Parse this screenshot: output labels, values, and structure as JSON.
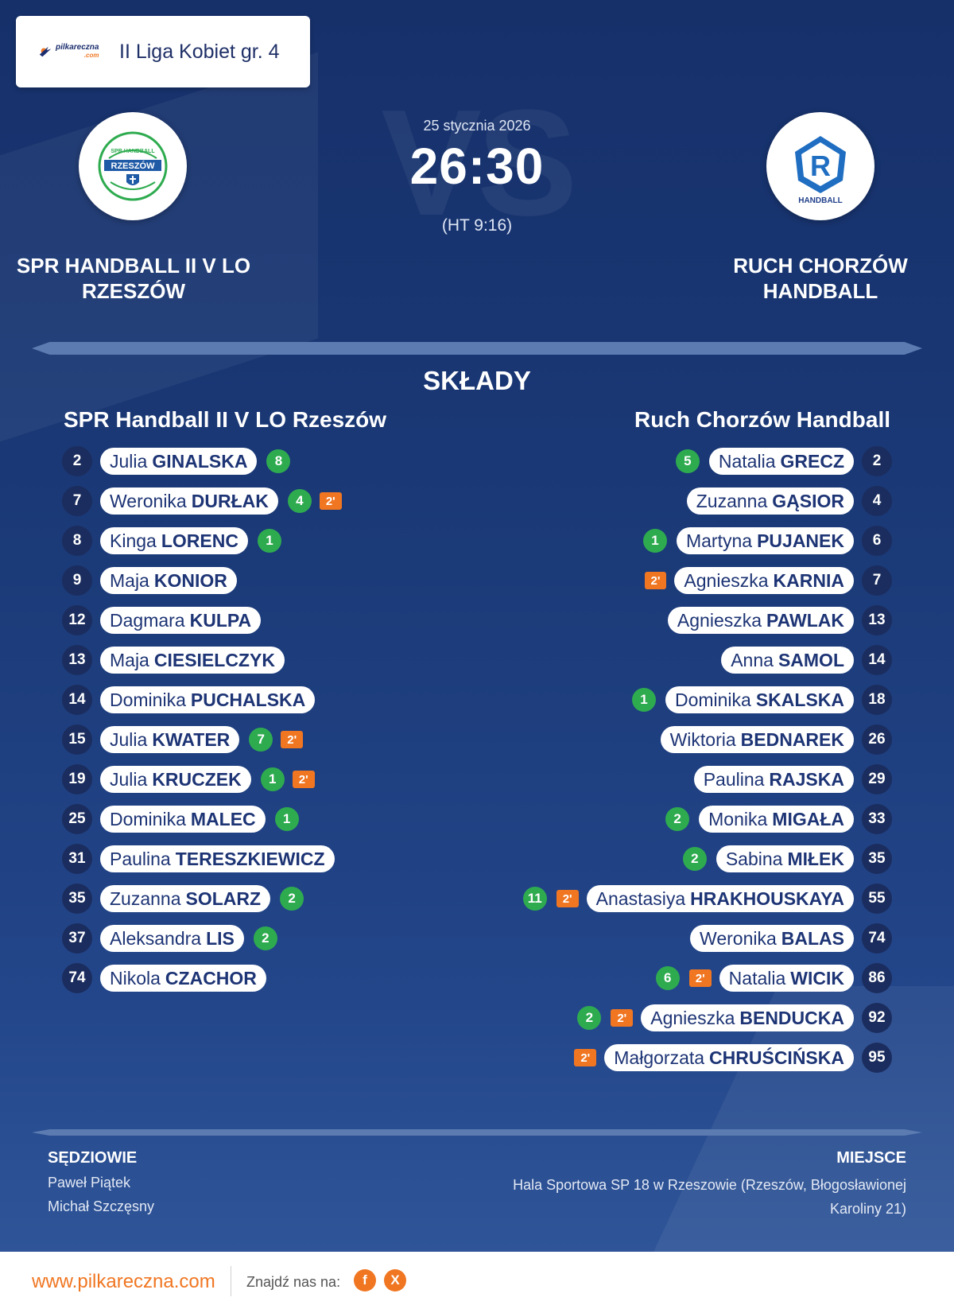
{
  "brand": {
    "logo_name": "pilkareczna",
    "logo_suffix": ".com",
    "accent_color": "#f07622"
  },
  "header": {
    "league": "II Liga Kobiet gr. 4"
  },
  "match": {
    "date": "25 stycznia 2026",
    "score": "26:30",
    "halftime": "(HT 9:16)",
    "vs_watermark": "VS"
  },
  "home": {
    "name": "SPR HANDBALL II V LO RZESZÓW",
    "logo_text": "RZESZÓW",
    "logo_top": "SPR HANDBALL"
  },
  "away": {
    "name": "RUCH CHORZÓW HANDBALL",
    "logo_text": "HANDBALL",
    "logo_letter": "R"
  },
  "lineups": {
    "title": "SKŁADY",
    "home_title": "SPR Handball II V LO Rzeszów",
    "away_title": "Ruch Chorzów Handball",
    "home_players": [
      {
        "num": "2",
        "first": "Julia",
        "last": "GINALSKA",
        "goals": "8",
        "susp": ""
      },
      {
        "num": "7",
        "first": "Weronika",
        "last": "DURŁAK",
        "goals": "4",
        "susp": "2'"
      },
      {
        "num": "8",
        "first": "Kinga",
        "last": "LORENC",
        "goals": "1",
        "susp": ""
      },
      {
        "num": "9",
        "first": "Maja",
        "last": "KONIOR",
        "goals": "",
        "susp": ""
      },
      {
        "num": "12",
        "first": "Dagmara",
        "last": "KULPA",
        "goals": "",
        "susp": ""
      },
      {
        "num": "13",
        "first": "Maja",
        "last": "CIESIELCZYK",
        "goals": "",
        "susp": ""
      },
      {
        "num": "14",
        "first": "Dominika",
        "last": "PUCHALSKA",
        "goals": "",
        "susp": ""
      },
      {
        "num": "15",
        "first": "Julia",
        "last": "KWATER",
        "goals": "7",
        "susp": "2'"
      },
      {
        "num": "19",
        "first": "Julia",
        "last": "KRUCZEK",
        "goals": "1",
        "susp": "2'"
      },
      {
        "num": "25",
        "first": "Dominika",
        "last": "MALEC",
        "goals": "1",
        "susp": ""
      },
      {
        "num": "31",
        "first": "Paulina",
        "last": "TERESZKIEWICZ",
        "goals": "",
        "susp": ""
      },
      {
        "num": "35",
        "first": "Zuzanna",
        "last": "SOLARZ",
        "goals": "2",
        "susp": ""
      },
      {
        "num": "37",
        "first": "Aleksandra",
        "last": "LIS",
        "goals": "2",
        "susp": ""
      },
      {
        "num": "74",
        "first": "Nikola",
        "last": "CZACHOR",
        "goals": "",
        "susp": ""
      }
    ],
    "away_players": [
      {
        "num": "2",
        "first": "Natalia",
        "last": "GRECZ",
        "goals": "5",
        "susp": ""
      },
      {
        "num": "4",
        "first": "Zuzanna",
        "last": "GĄSIOR",
        "goals": "",
        "susp": ""
      },
      {
        "num": "6",
        "first": "Martyna",
        "last": "PUJANEK",
        "goals": "1",
        "susp": ""
      },
      {
        "num": "7",
        "first": "Agnieszka",
        "last": "KARNIA",
        "goals": "",
        "susp": "2'"
      },
      {
        "num": "13",
        "first": "Agnieszka",
        "last": "PAWLAK",
        "goals": "",
        "susp": ""
      },
      {
        "num": "14",
        "first": "Anna",
        "last": "SAMOL",
        "goals": "",
        "susp": ""
      },
      {
        "num": "18",
        "first": "Dominika",
        "last": "SKALSKA",
        "goals": "1",
        "susp": ""
      },
      {
        "num": "26",
        "first": "Wiktoria",
        "last": "BEDNAREK",
        "goals": "",
        "susp": ""
      },
      {
        "num": "29",
        "first": "Paulina",
        "last": "RAJSKA",
        "goals": "",
        "susp": ""
      },
      {
        "num": "33",
        "first": "Monika",
        "last": "MIGAŁA",
        "goals": "2",
        "susp": ""
      },
      {
        "num": "35",
        "first": "Sabina",
        "last": "MIŁEK",
        "goals": "2",
        "susp": ""
      },
      {
        "num": "55",
        "first": "Anastasiya",
        "last": "HRAKHOUSKAYA",
        "goals": "11",
        "susp": "2'"
      },
      {
        "num": "74",
        "first": "Weronika",
        "last": "BALAS",
        "goals": "",
        "susp": ""
      },
      {
        "num": "86",
        "first": "Natalia",
        "last": "WICIK",
        "goals": "6",
        "susp": "2'"
      },
      {
        "num": "92",
        "first": "Agnieszka",
        "last": "BENDUCKA",
        "goals": "2",
        "susp": "2'"
      },
      {
        "num": "95",
        "first": "Małgorzata",
        "last": "CHRUŚCIŃSKA",
        "goals": "",
        "susp": "2'"
      }
    ]
  },
  "officials": {
    "title": "SĘDZIOWIE",
    "names": [
      "Paweł Piątek",
      "Michał Szczęsny"
    ]
  },
  "venue": {
    "title": "MIEJSCE",
    "text": "Hala Sportowa SP 18 w Rzeszowie (Rzeszów, Błogosławionej Karoliny 21)"
  },
  "footer": {
    "site": "www.pilkareczna.com",
    "find_us": "Znajdź nas na:",
    "social": [
      "f",
      "X"
    ],
    "social_icons": [
      "facebook-icon",
      "x-icon"
    ]
  }
}
